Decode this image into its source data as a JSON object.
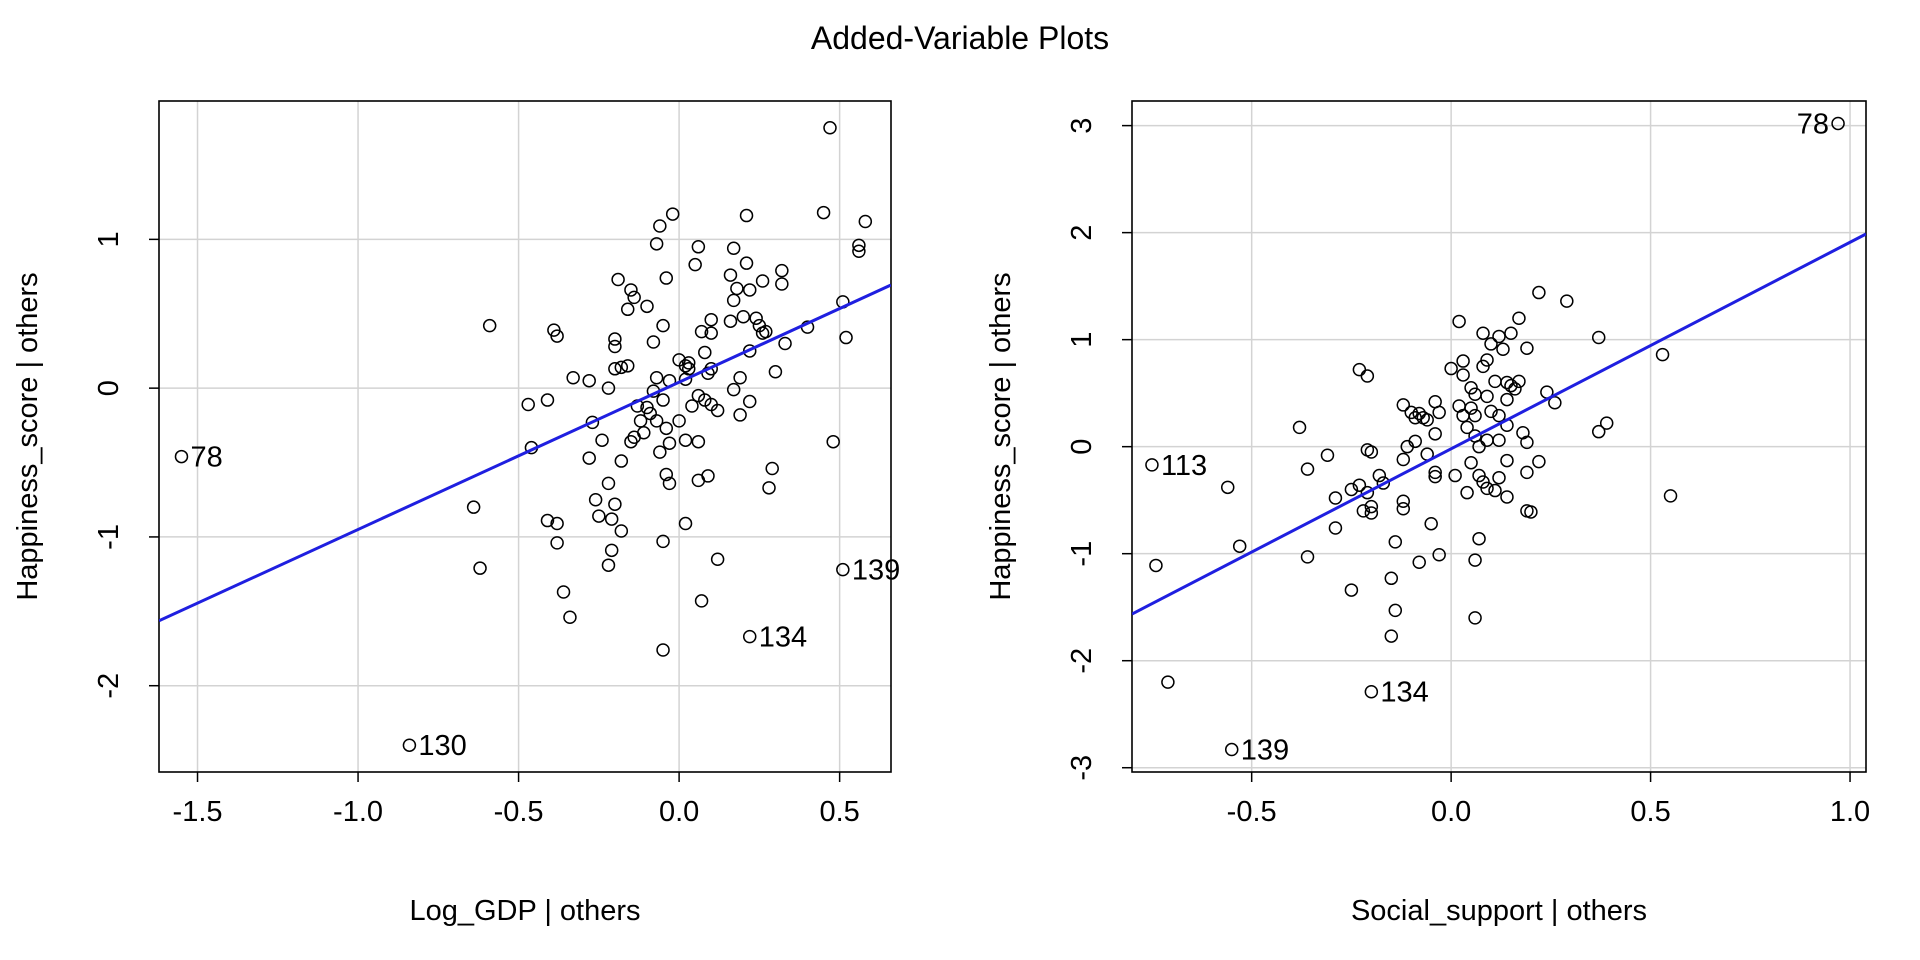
{
  "figure": {
    "title": "Added-Variable Plots"
  },
  "colors": {
    "fit_line": "#1f1fe0",
    "grid": "#d3d3d3",
    "points": "#000000"
  },
  "chart_data": [
    {
      "type": "scatter",
      "xlabel": "Log_GDP | others",
      "ylabel": "Happiness_score  | others",
      "xlim": [
        -1.62,
        0.66
      ],
      "ylim": [
        -2.58,
        1.93
      ],
      "xticks": [
        -1.5,
        -1.0,
        -0.5,
        0.0,
        0.5
      ],
      "xtick_labels": [
        "-1.5",
        "-1.0",
        "-0.5",
        "0.0",
        "0.5"
      ],
      "yticks": [
        -2,
        -1,
        0,
        1
      ],
      "ytick_labels": [
        "-2",
        "-1",
        "0",
        "1"
      ],
      "grid": true,
      "fit_line": {
        "intercept": 0.04,
        "slope": 0.99
      },
      "labeled_points": [
        {
          "x": -1.55,
          "y": -0.46,
          "label": "78"
        },
        {
          "x": -0.84,
          "y": -2.4,
          "label": "130"
        },
        {
          "x": 0.22,
          "y": -1.67,
          "label": "134"
        },
        {
          "x": 0.51,
          "y": -1.22,
          "label": "139"
        }
      ],
      "points": [
        [
          0.47,
          1.75
        ],
        [
          0.45,
          1.18
        ],
        [
          0.58,
          1.12
        ],
        [
          0.56,
          0.96
        ],
        [
          0.56,
          0.92
        ],
        [
          0.51,
          0.58
        ],
        [
          0.52,
          0.34
        ],
        [
          0.4,
          0.41
        ],
        [
          0.33,
          0.3
        ],
        [
          0.32,
          0.79
        ],
        [
          0.32,
          0.7
        ],
        [
          0.3,
          0.11
        ],
        [
          0.29,
          -0.54
        ],
        [
          0.28,
          -0.67
        ],
        [
          0.48,
          -0.36
        ],
        [
          0.21,
          1.16
        ],
        [
          0.17,
          0.94
        ],
        [
          0.21,
          0.84
        ],
        [
          0.16,
          0.76
        ],
        [
          0.22,
          0.66
        ],
        [
          0.26,
          0.72
        ],
        [
          0.24,
          0.47
        ],
        [
          0.25,
          0.42
        ],
        [
          0.26,
          0.37
        ],
        [
          0.27,
          0.38
        ],
        [
          0.22,
          0.25
        ],
        [
          0.2,
          0.48
        ],
        [
          0.18,
          0.67
        ],
        [
          0.17,
          0.59
        ],
        [
          0.16,
          0.45
        ],
        [
          0.19,
          0.07
        ],
        [
          0.22,
          -0.09
        ],
        [
          0.17,
          -0.01
        ],
        [
          0.19,
          -0.18
        ],
        [
          0.12,
          -0.15
        ],
        [
          0.1,
          -0.11
        ],
        [
          0.12,
          -1.15
        ],
        [
          0.09,
          -0.59
        ],
        [
          0.06,
          -0.62
        ],
        [
          0.06,
          -0.36
        ],
        [
          0.07,
          -1.43
        ],
        [
          -0.05,
          -1.76
        ],
        [
          0.02,
          -0.91
        ],
        [
          0.06,
          0.95
        ],
        [
          0.05,
          0.83
        ],
        [
          0.1,
          0.46
        ],
        [
          0.07,
          0.38
        ],
        [
          0.1,
          0.37
        ],
        [
          0.08,
          0.24
        ],
        [
          0.09,
          0.1
        ],
        [
          0.1,
          0.13
        ],
        [
          0.03,
          0.17
        ],
        [
          0.0,
          0.19
        ],
        [
          0.02,
          0.15
        ],
        [
          0.03,
          0.13
        ],
        [
          0.02,
          0.06
        ],
        [
          0.06,
          -0.05
        ],
        [
          0.04,
          -0.12
        ],
        [
          0.08,
          -0.08
        ],
        [
          0.0,
          -0.22
        ],
        [
          -0.02,
          1.17
        ],
        [
          -0.06,
          1.09
        ],
        [
          -0.07,
          0.97
        ],
        [
          -0.04,
          0.74
        ],
        [
          -0.1,
          0.55
        ],
        [
          -0.05,
          0.42
        ],
        [
          -0.08,
          0.31
        ],
        [
          -0.07,
          0.07
        ],
        [
          -0.03,
          0.05
        ],
        [
          -0.05,
          -0.08
        ],
        [
          -0.08,
          -0.02
        ],
        [
          -0.1,
          -0.13
        ],
        [
          -0.09,
          -0.17
        ],
        [
          -0.07,
          -0.22
        ],
        [
          -0.04,
          -0.27
        ],
        [
          -0.03,
          -0.37
        ],
        [
          -0.06,
          -0.43
        ],
        [
          -0.04,
          -0.58
        ],
        [
          -0.03,
          -0.64
        ],
        [
          0.02,
          -0.35
        ],
        [
          -0.05,
          -1.03
        ],
        [
          -0.19,
          0.73
        ],
        [
          -0.15,
          0.66
        ],
        [
          -0.14,
          0.61
        ],
        [
          -0.16,
          0.53
        ],
        [
          -0.2,
          0.33
        ],
        [
          -0.2,
          0.28
        ],
        [
          -0.18,
          0.14
        ],
        [
          -0.16,
          0.15
        ],
        [
          -0.2,
          0.13
        ],
        [
          -0.22,
          0.0
        ],
        [
          -0.13,
          -0.12
        ],
        [
          -0.12,
          -0.22
        ],
        [
          -0.14,
          -0.33
        ],
        [
          -0.15,
          -0.36
        ],
        [
          -0.11,
          -0.3
        ],
        [
          -0.18,
          -0.49
        ],
        [
          -0.22,
          -0.64
        ],
        [
          -0.2,
          -0.78
        ],
        [
          -0.21,
          -0.88
        ],
        [
          -0.18,
          -0.96
        ],
        [
          -0.21,
          -1.09
        ],
        [
          -0.22,
          -1.19
        ],
        [
          -0.28,
          0.05
        ],
        [
          -0.33,
          0.07
        ],
        [
          -0.27,
          -0.23
        ],
        [
          -0.24,
          -0.35
        ],
        [
          -0.28,
          -0.47
        ],
        [
          -0.26,
          -0.75
        ],
        [
          -0.25,
          -0.86
        ],
        [
          -0.39,
          0.39
        ],
        [
          -0.38,
          0.35
        ],
        [
          -0.41,
          -0.08
        ],
        [
          -0.47,
          -0.11
        ],
        [
          -0.46,
          -0.4
        ],
        [
          -0.41,
          -0.89
        ],
        [
          -0.38,
          -0.91
        ],
        [
          -0.38,
          -1.04
        ],
        [
          -0.36,
          -1.37
        ],
        [
          -0.34,
          -1.54
        ],
        [
          -0.59,
          0.42
        ],
        [
          -0.64,
          -0.8
        ],
        [
          -0.62,
          -1.21
        ]
      ]
    },
    {
      "type": "scatter",
      "xlabel": "Social_support | others",
      "ylabel": "Happiness_score  | others",
      "xlim": [
        -0.8,
        1.04
      ],
      "ylim": [
        -3.04,
        3.23
      ],
      "xticks": [
        -0.5,
        0.0,
        0.5,
        1.0
      ],
      "xtick_labels": [
        "-0.5",
        "0.0",
        "0.5",
        "1.0"
      ],
      "yticks": [
        -3,
        -2,
        -1,
        0,
        1,
        2,
        3
      ],
      "ytick_labels": [
        "-3",
        "-2",
        "-1",
        "0",
        "1",
        "2",
        "3"
      ],
      "grid": true,
      "fit_line": {
        "intercept": -0.02,
        "slope": 1.93
      },
      "labeled_points": [
        {
          "x": 0.97,
          "y": 3.02,
          "label": "78"
        },
        {
          "x": -0.75,
          "y": -0.17,
          "label": "113"
        },
        {
          "x": -0.2,
          "y": -2.29,
          "label": "134"
        },
        {
          "x": -0.55,
          "y": -2.83,
          "label": "139"
        }
      ],
      "points": [
        [
          -0.74,
          -1.11
        ],
        [
          -0.71,
          -2.2
        ],
        [
          -0.56,
          -0.38
        ],
        [
          -0.53,
          -0.93
        ],
        [
          -0.38,
          0.18
        ],
        [
          -0.36,
          -0.21
        ],
        [
          -0.36,
          -1.03
        ],
        [
          -0.31,
          -0.08
        ],
        [
          -0.29,
          -0.48
        ],
        [
          -0.29,
          -0.76
        ],
        [
          -0.25,
          -0.4
        ],
        [
          -0.25,
          -1.34
        ],
        [
          -0.23,
          0.72
        ],
        [
          -0.21,
          0.66
        ],
        [
          -0.23,
          -0.36
        ],
        [
          -0.21,
          -0.43
        ],
        [
          -0.2,
          -0.56
        ],
        [
          -0.22,
          -0.6
        ],
        [
          -0.2,
          -0.62
        ],
        [
          -0.21,
          -0.03
        ],
        [
          -0.2,
          -0.05
        ],
        [
          -0.18,
          -0.27
        ],
        [
          -0.17,
          -0.34
        ],
        [
          -0.14,
          -0.89
        ],
        [
          -0.15,
          -1.23
        ],
        [
          -0.14,
          -1.53
        ],
        [
          -0.15,
          -1.77
        ],
        [
          -0.12,
          0.39
        ],
        [
          -0.1,
          0.32
        ],
        [
          -0.09,
          0.27
        ],
        [
          -0.09,
          0.05
        ],
        [
          -0.11,
          0.0
        ],
        [
          -0.12,
          -0.12
        ],
        [
          -0.12,
          -0.51
        ],
        [
          -0.12,
          -0.58
        ],
        [
          -0.08,
          -1.08
        ],
        [
          -0.08,
          0.31
        ],
        [
          -0.07,
          0.27
        ],
        [
          -0.06,
          0.25
        ],
        [
          -0.04,
          0.42
        ],
        [
          -0.03,
          0.32
        ],
        [
          -0.04,
          0.12
        ],
        [
          -0.06,
          -0.07
        ],
        [
          -0.04,
          -0.24
        ],
        [
          -0.04,
          -0.28
        ],
        [
          -0.05,
          -0.72
        ],
        [
          -0.03,
          -1.01
        ],
        [
          0.02,
          1.17
        ],
        [
          0.0,
          0.73
        ],
        [
          0.03,
          0.8
        ],
        [
          0.03,
          0.67
        ],
        [
          0.02,
          0.38
        ],
        [
          0.03,
          0.29
        ],
        [
          0.04,
          0.18
        ],
        [
          0.01,
          -0.27
        ],
        [
          0.04,
          -0.43
        ],
        [
          0.05,
          0.55
        ],
        [
          0.06,
          0.49
        ],
        [
          0.05,
          0.36
        ],
        [
          0.06,
          0.29
        ],
        [
          0.06,
          0.1
        ],
        [
          0.05,
          -0.15
        ],
        [
          0.08,
          1.06
        ],
        [
          0.09,
          0.81
        ],
        [
          0.08,
          0.75
        ],
        [
          0.1,
          0.96
        ],
        [
          0.11,
          0.61
        ],
        [
          0.09,
          0.47
        ],
        [
          0.1,
          0.33
        ],
        [
          0.09,
          0.06
        ],
        [
          0.07,
          0.0
        ],
        [
          0.07,
          -0.27
        ],
        [
          0.08,
          -0.33
        ],
        [
          0.09,
          -0.39
        ],
        [
          0.11,
          -0.41
        ],
        [
          0.07,
          -0.86
        ],
        [
          0.06,
          -1.06
        ],
        [
          0.06,
          -1.6
        ],
        [
          0.12,
          1.03
        ],
        [
          0.15,
          1.06
        ],
        [
          0.13,
          0.91
        ],
        [
          0.14,
          0.6
        ],
        [
          0.15,
          0.57
        ],
        [
          0.14,
          0.44
        ],
        [
          0.12,
          0.29
        ],
        [
          0.14,
          0.2
        ],
        [
          0.12,
          0.06
        ],
        [
          0.14,
          -0.13
        ],
        [
          0.12,
          -0.29
        ],
        [
          0.14,
          -0.47
        ],
        [
          0.17,
          1.2
        ],
        [
          0.19,
          0.92
        ],
        [
          0.17,
          0.61
        ],
        [
          0.16,
          0.54
        ],
        [
          0.18,
          0.13
        ],
        [
          0.19,
          0.04
        ],
        [
          0.19,
          -0.24
        ],
        [
          0.19,
          -0.6
        ],
        [
          0.2,
          -0.61
        ],
        [
          0.22,
          1.44
        ],
        [
          0.22,
          -0.14
        ],
        [
          0.24,
          0.51
        ],
        [
          0.26,
          0.41
        ],
        [
          0.29,
          1.36
        ],
        [
          0.37,
          1.02
        ],
        [
          0.37,
          0.14
        ],
        [
          0.39,
          0.22
        ],
        [
          0.53,
          0.86
        ],
        [
          0.55,
          -0.46
        ]
      ]
    }
  ]
}
